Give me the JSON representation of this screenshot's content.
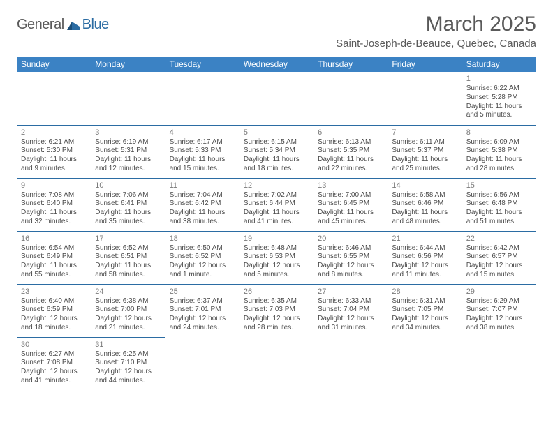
{
  "brand": {
    "general": "General",
    "blue": "Blue"
  },
  "colors": {
    "header_bg": "#3b82c4",
    "header_text": "#ffffff",
    "border": "#2b6ca3",
    "text": "#4a4a4a",
    "muted": "#7a7a7a",
    "title": "#5a5a5a"
  },
  "title": "March 2025",
  "location": "Saint-Joseph-de-Beauce, Quebec, Canada",
  "weekdays": [
    "Sunday",
    "Monday",
    "Tuesday",
    "Wednesday",
    "Thursday",
    "Friday",
    "Saturday"
  ],
  "weeks": [
    [
      null,
      null,
      null,
      null,
      null,
      null,
      {
        "n": "1",
        "sr": "Sunrise: 6:22 AM",
        "ss": "Sunset: 5:28 PM",
        "d1": "Daylight: 11 hours",
        "d2": "and 5 minutes."
      }
    ],
    [
      {
        "n": "2",
        "sr": "Sunrise: 6:21 AM",
        "ss": "Sunset: 5:30 PM",
        "d1": "Daylight: 11 hours",
        "d2": "and 9 minutes."
      },
      {
        "n": "3",
        "sr": "Sunrise: 6:19 AM",
        "ss": "Sunset: 5:31 PM",
        "d1": "Daylight: 11 hours",
        "d2": "and 12 minutes."
      },
      {
        "n": "4",
        "sr": "Sunrise: 6:17 AM",
        "ss": "Sunset: 5:33 PM",
        "d1": "Daylight: 11 hours",
        "d2": "and 15 minutes."
      },
      {
        "n": "5",
        "sr": "Sunrise: 6:15 AM",
        "ss": "Sunset: 5:34 PM",
        "d1": "Daylight: 11 hours",
        "d2": "and 18 minutes."
      },
      {
        "n": "6",
        "sr": "Sunrise: 6:13 AM",
        "ss": "Sunset: 5:35 PM",
        "d1": "Daylight: 11 hours",
        "d2": "and 22 minutes."
      },
      {
        "n": "7",
        "sr": "Sunrise: 6:11 AM",
        "ss": "Sunset: 5:37 PM",
        "d1": "Daylight: 11 hours",
        "d2": "and 25 minutes."
      },
      {
        "n": "8",
        "sr": "Sunrise: 6:09 AM",
        "ss": "Sunset: 5:38 PM",
        "d1": "Daylight: 11 hours",
        "d2": "and 28 minutes."
      }
    ],
    [
      {
        "n": "9",
        "sr": "Sunrise: 7:08 AM",
        "ss": "Sunset: 6:40 PM",
        "d1": "Daylight: 11 hours",
        "d2": "and 32 minutes."
      },
      {
        "n": "10",
        "sr": "Sunrise: 7:06 AM",
        "ss": "Sunset: 6:41 PM",
        "d1": "Daylight: 11 hours",
        "d2": "and 35 minutes."
      },
      {
        "n": "11",
        "sr": "Sunrise: 7:04 AM",
        "ss": "Sunset: 6:42 PM",
        "d1": "Daylight: 11 hours",
        "d2": "and 38 minutes."
      },
      {
        "n": "12",
        "sr": "Sunrise: 7:02 AM",
        "ss": "Sunset: 6:44 PM",
        "d1": "Daylight: 11 hours",
        "d2": "and 41 minutes."
      },
      {
        "n": "13",
        "sr": "Sunrise: 7:00 AM",
        "ss": "Sunset: 6:45 PM",
        "d1": "Daylight: 11 hours",
        "d2": "and 45 minutes."
      },
      {
        "n": "14",
        "sr": "Sunrise: 6:58 AM",
        "ss": "Sunset: 6:46 PM",
        "d1": "Daylight: 11 hours",
        "d2": "and 48 minutes."
      },
      {
        "n": "15",
        "sr": "Sunrise: 6:56 AM",
        "ss": "Sunset: 6:48 PM",
        "d1": "Daylight: 11 hours",
        "d2": "and 51 minutes."
      }
    ],
    [
      {
        "n": "16",
        "sr": "Sunrise: 6:54 AM",
        "ss": "Sunset: 6:49 PM",
        "d1": "Daylight: 11 hours",
        "d2": "and 55 minutes."
      },
      {
        "n": "17",
        "sr": "Sunrise: 6:52 AM",
        "ss": "Sunset: 6:51 PM",
        "d1": "Daylight: 11 hours",
        "d2": "and 58 minutes."
      },
      {
        "n": "18",
        "sr": "Sunrise: 6:50 AM",
        "ss": "Sunset: 6:52 PM",
        "d1": "Daylight: 12 hours",
        "d2": "and 1 minute."
      },
      {
        "n": "19",
        "sr": "Sunrise: 6:48 AM",
        "ss": "Sunset: 6:53 PM",
        "d1": "Daylight: 12 hours",
        "d2": "and 5 minutes."
      },
      {
        "n": "20",
        "sr": "Sunrise: 6:46 AM",
        "ss": "Sunset: 6:55 PM",
        "d1": "Daylight: 12 hours",
        "d2": "and 8 minutes."
      },
      {
        "n": "21",
        "sr": "Sunrise: 6:44 AM",
        "ss": "Sunset: 6:56 PM",
        "d1": "Daylight: 12 hours",
        "d2": "and 11 minutes."
      },
      {
        "n": "22",
        "sr": "Sunrise: 6:42 AM",
        "ss": "Sunset: 6:57 PM",
        "d1": "Daylight: 12 hours",
        "d2": "and 15 minutes."
      }
    ],
    [
      {
        "n": "23",
        "sr": "Sunrise: 6:40 AM",
        "ss": "Sunset: 6:59 PM",
        "d1": "Daylight: 12 hours",
        "d2": "and 18 minutes."
      },
      {
        "n": "24",
        "sr": "Sunrise: 6:38 AM",
        "ss": "Sunset: 7:00 PM",
        "d1": "Daylight: 12 hours",
        "d2": "and 21 minutes."
      },
      {
        "n": "25",
        "sr": "Sunrise: 6:37 AM",
        "ss": "Sunset: 7:01 PM",
        "d1": "Daylight: 12 hours",
        "d2": "and 24 minutes."
      },
      {
        "n": "26",
        "sr": "Sunrise: 6:35 AM",
        "ss": "Sunset: 7:03 PM",
        "d1": "Daylight: 12 hours",
        "d2": "and 28 minutes."
      },
      {
        "n": "27",
        "sr": "Sunrise: 6:33 AM",
        "ss": "Sunset: 7:04 PM",
        "d1": "Daylight: 12 hours",
        "d2": "and 31 minutes."
      },
      {
        "n": "28",
        "sr": "Sunrise: 6:31 AM",
        "ss": "Sunset: 7:05 PM",
        "d1": "Daylight: 12 hours",
        "d2": "and 34 minutes."
      },
      {
        "n": "29",
        "sr": "Sunrise: 6:29 AM",
        "ss": "Sunset: 7:07 PM",
        "d1": "Daylight: 12 hours",
        "d2": "and 38 minutes."
      }
    ],
    [
      {
        "n": "30",
        "sr": "Sunrise: 6:27 AM",
        "ss": "Sunset: 7:08 PM",
        "d1": "Daylight: 12 hours",
        "d2": "and 41 minutes."
      },
      {
        "n": "31",
        "sr": "Sunrise: 6:25 AM",
        "ss": "Sunset: 7:10 PM",
        "d1": "Daylight: 12 hours",
        "d2": "and 44 minutes."
      },
      null,
      null,
      null,
      null,
      null
    ]
  ]
}
